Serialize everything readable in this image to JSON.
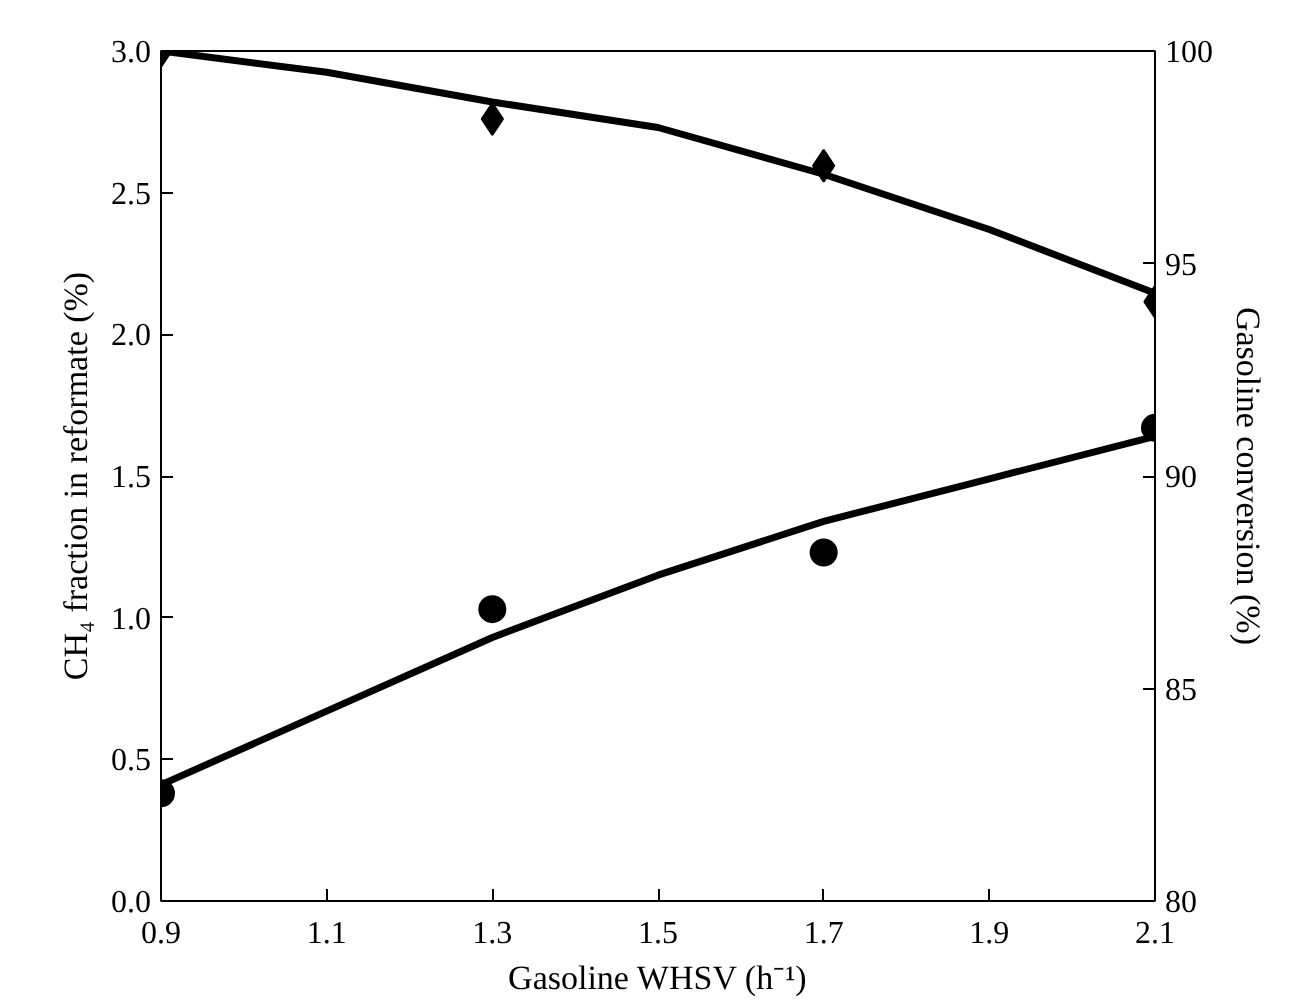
{
  "chart_data": {
    "type": "scatter",
    "xlabel": "Gasoline WHSV (h⁻¹)",
    "ylabel": "CH₄ fraction in reformate (%)",
    "y2label": "Gasoline conversion (%)",
    "xlim": [
      0.9,
      2.1
    ],
    "xticks": [
      0.9,
      1.1,
      1.3,
      1.5,
      1.7,
      1.9,
      2.1
    ],
    "ylim": [
      0,
      3
    ],
    "yticks": [
      {
        "value": 0,
        "label": "0.0"
      },
      0.5,
      {
        "value": 1,
        "label": "1.0"
      },
      1.5,
      {
        "value": 2,
        "label": "2.0"
      },
      2.5,
      {
        "value": 3,
        "label": "3.0"
      }
    ],
    "y2lim": [
      80,
      100
    ],
    "y2ticks": [
      80,
      85,
      90,
      95,
      100
    ],
    "grid": false,
    "series": [
      {
        "marker": "circle",
        "color": "#000000",
        "x": [
          0.9,
          1.3,
          1.7,
          2.1
        ],
        "values": [
          0.38,
          1.03,
          1.23,
          1.67
        ]
      },
      {
        "marker": "diamond",
        "color": "#000000",
        "axis": "y2",
        "x": [
          0.9,
          1.3,
          1.7,
          2.1
        ],
        "values": [
          100,
          98.4,
          97.3,
          94.1
        ]
      },
      {
        "type": "line",
        "marker": "none",
        "line_style": "solid",
        "color": "#000000",
        "x": [
          0.9,
          1.1,
          1.3,
          1.5,
          1.7,
          1.9,
          2.1
        ],
        "values": [
          0.41,
          0.67,
          0.93,
          1.15,
          1.34,
          1.49,
          1.64
        ]
      },
      {
        "type": "line",
        "marker": "none",
        "line_style": "solid",
        "color": "#000000",
        "axis": "y2",
        "x": [
          0.9,
          1.1,
          1.3,
          1.5,
          1.7,
          1.9,
          2.1
        ],
        "values": [
          100,
          99.5,
          98.8,
          98.2,
          97.1,
          95.8,
          94.3
        ]
      }
    ]
  }
}
